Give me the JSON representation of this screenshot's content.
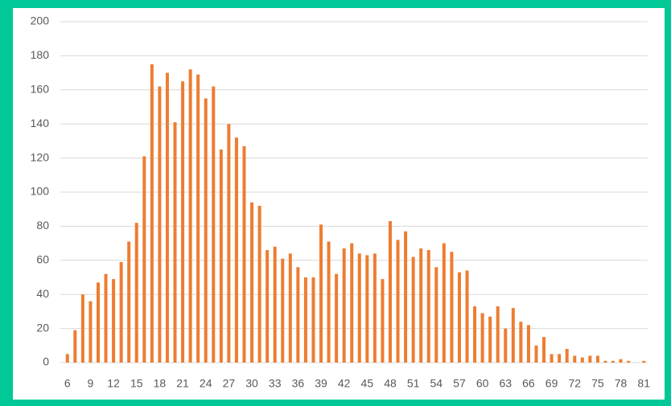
{
  "chart_data": {
    "type": "bar",
    "categories": [
      "6",
      null,
      null,
      "9",
      null,
      null,
      "12",
      null,
      null,
      "15",
      null,
      null,
      "18",
      null,
      null,
      "21",
      null,
      null,
      "24",
      null,
      null,
      "27",
      null,
      null,
      "30",
      null,
      null,
      "33",
      null,
      null,
      "36",
      null,
      null,
      "39",
      null,
      null,
      "42",
      null,
      null,
      "45",
      null,
      null,
      "48",
      null,
      null,
      "51",
      null,
      null,
      "54",
      null,
      null,
      "57",
      null,
      null,
      "60",
      null,
      null,
      "63",
      null,
      null,
      "66",
      null,
      null,
      "69",
      null,
      null,
      "72",
      null,
      null,
      "75",
      null,
      null,
      "78",
      null,
      null,
      "81"
    ],
    "values": [
      5,
      19,
      40,
      36,
      47,
      52,
      49,
      59,
      71,
      82,
      121,
      175,
      162,
      170,
      141,
      165,
      172,
      169,
      155,
      162,
      125,
      140,
      132,
      127,
      94,
      92,
      66,
      68,
      61,
      64,
      56,
      50,
      50,
      81,
      71,
      52,
      67,
      70,
      64,
      63,
      64,
      49,
      83,
      72,
      77,
      62,
      67,
      66,
      56,
      70,
      65,
      53,
      54,
      33,
      29,
      27,
      33,
      20,
      32,
      24,
      22,
      10,
      15,
      5,
      5,
      8,
      4,
      3,
      4,
      4,
      1,
      1,
      2,
      1,
      0,
      1
    ],
    "color": "#ed7d31",
    "ylim": [
      0,
      200
    ],
    "yticks": [
      0,
      20,
      40,
      60,
      80,
      100,
      120,
      140,
      160,
      180,
      200
    ],
    "grid": true
  }
}
